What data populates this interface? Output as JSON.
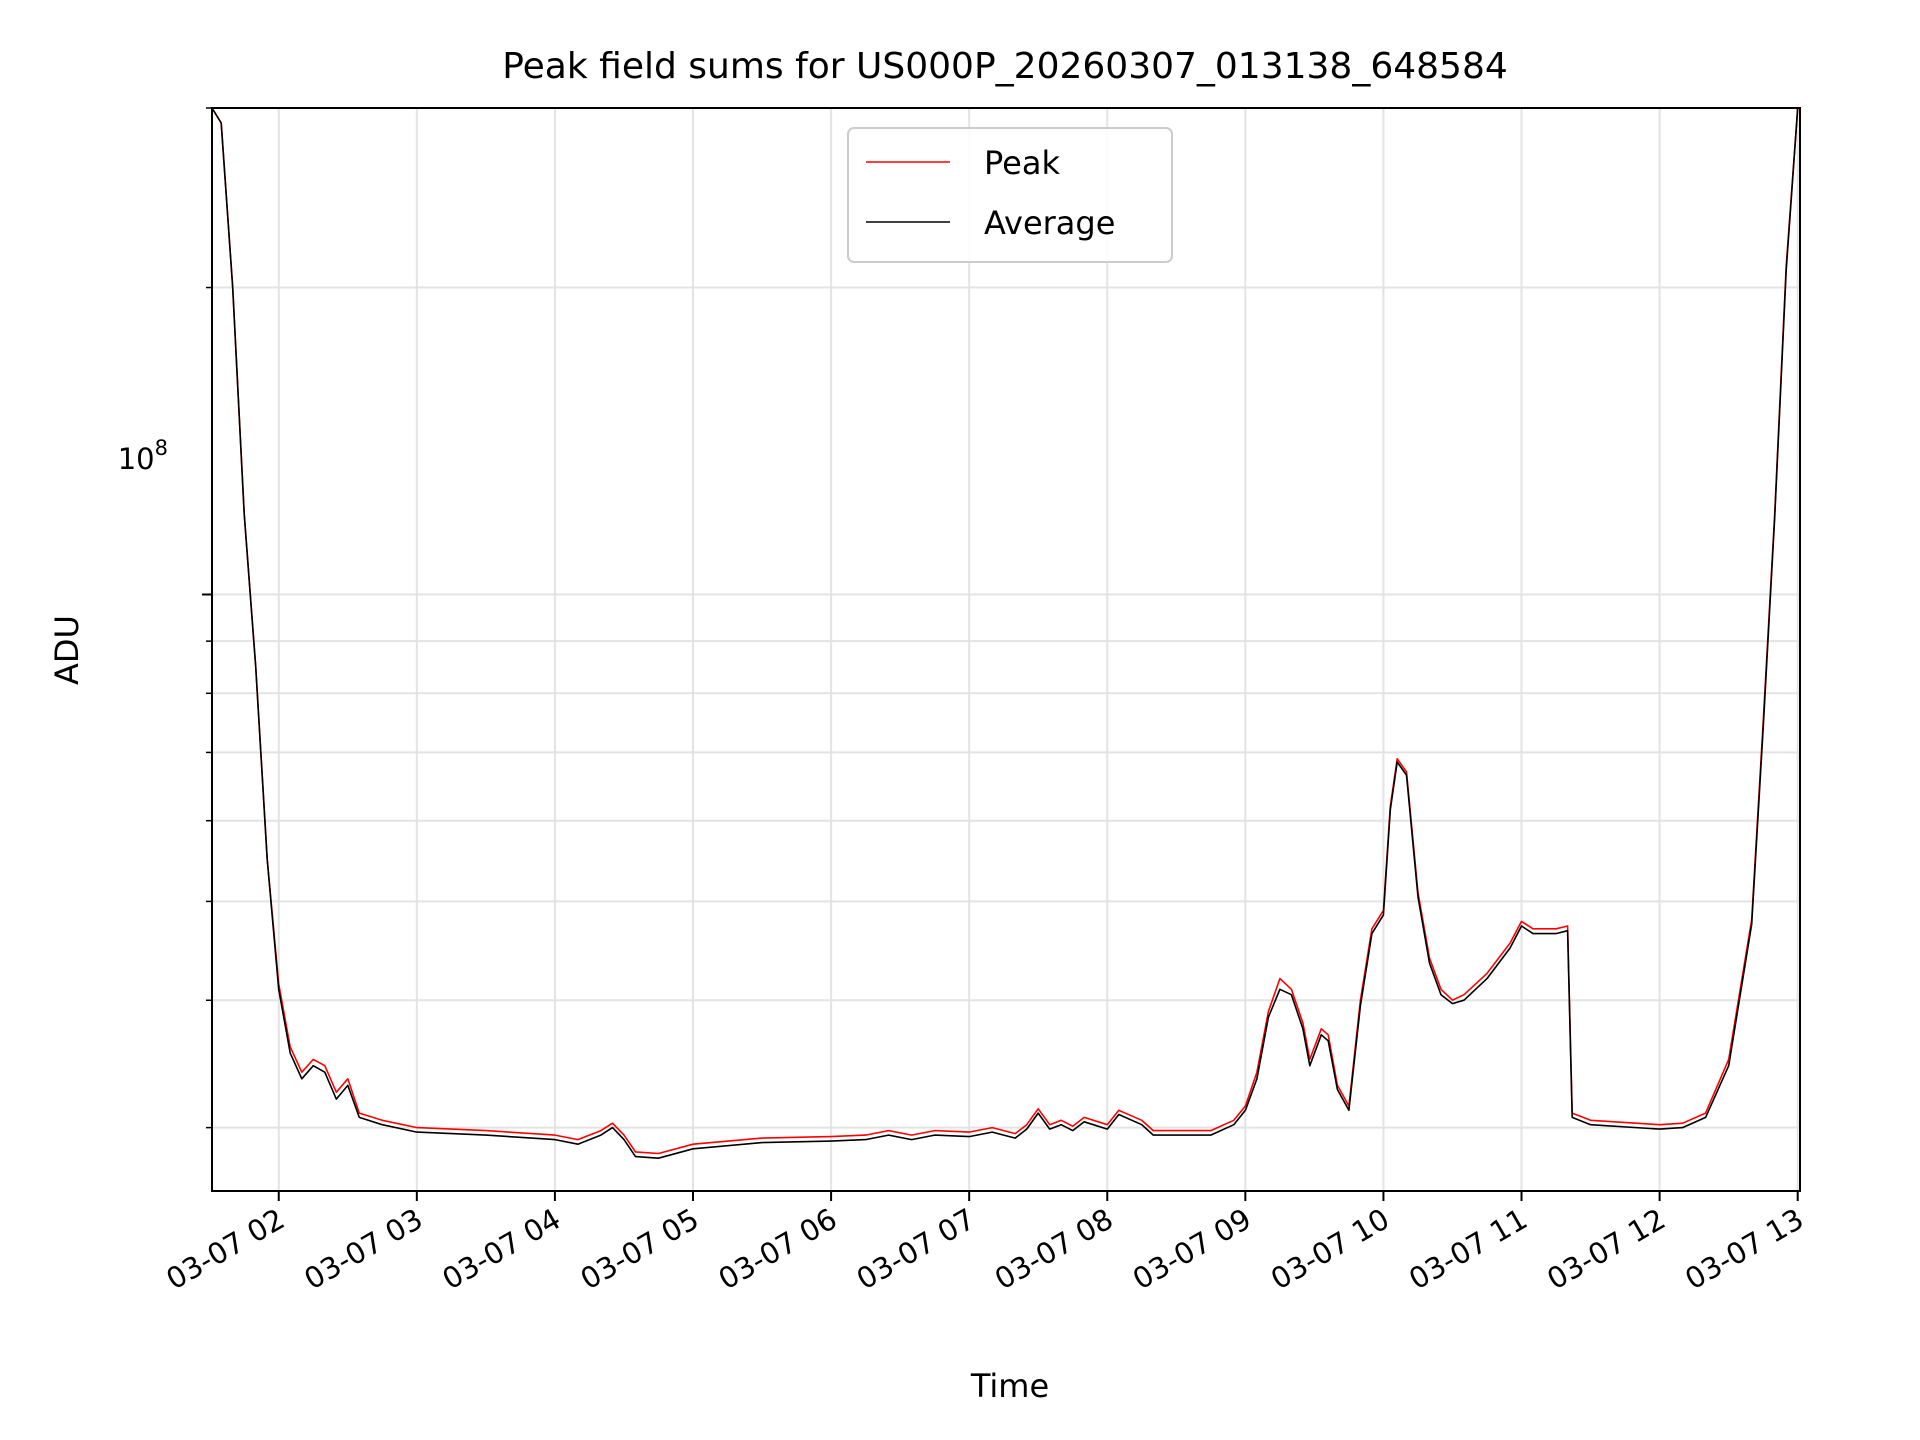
{
  "chart_data": {
    "type": "line",
    "title": "Peak field sums for US000P_20260307_013138_648584",
    "xlabel": "Time",
    "ylabel": "ADU",
    "y_scale": "log",
    "y_tick_label_base": "10",
    "y_tick_label_exp": "8",
    "y_tick_value": 100000000,
    "ylim": [
      26000000,
      300000000
    ],
    "xlim": [
      "2026-03-07 01:31",
      "2026-03-07 13:01"
    ],
    "x_ticks": [
      "03-07 02",
      "03-07 03",
      "03-07 04",
      "03-07 05",
      "03-07 06",
      "03-07 07",
      "03-07 08",
      "03-07 09",
      "03-07 10",
      "03-07 11",
      "03-07 12",
      "03-07 13"
    ],
    "x_tick_times": [
      "2026-03-07 02:00",
      "2026-03-07 03:00",
      "2026-03-07 04:00",
      "2026-03-07 05:00",
      "2026-03-07 06:00",
      "2026-03-07 07:00",
      "2026-03-07 08:00",
      "2026-03-07 09:00",
      "2026-03-07 10:00",
      "2026-03-07 11:00",
      "2026-03-07 12:00",
      "2026-03-07 13:00"
    ],
    "grid": true,
    "legend_position": "top-center",
    "series": [
      {
        "name": "Peak",
        "color": "#ff0000",
        "points": [
          [
            "2026-03-07 01:31",
            300000000
          ],
          [
            "2026-03-07 01:35",
            290000000
          ],
          [
            "2026-03-07 01:40",
            200000000
          ],
          [
            "2026-03-07 01:45",
            120000000
          ],
          [
            "2026-03-07 01:50",
            85000000
          ],
          [
            "2026-03-07 01:55",
            55000000
          ],
          [
            "2026-03-07 02:00",
            41500000
          ],
          [
            "2026-03-07 02:05",
            36000000
          ],
          [
            "2026-03-07 02:10",
            34000000
          ],
          [
            "2026-03-07 02:15",
            35000000
          ],
          [
            "2026-03-07 02:20",
            34500000
          ],
          [
            "2026-03-07 02:25",
            32500000
          ],
          [
            "2026-03-07 02:30",
            33500000
          ],
          [
            "2026-03-07 02:35",
            31000000
          ],
          [
            "2026-03-07 02:45",
            30500000
          ],
          [
            "2026-03-07 03:00",
            30000000
          ],
          [
            "2026-03-07 03:30",
            29800000
          ],
          [
            "2026-03-07 04:00",
            29500000
          ],
          [
            "2026-03-07 04:10",
            29200000
          ],
          [
            "2026-03-07 04:20",
            29800000
          ],
          [
            "2026-03-07 04:25",
            30300000
          ],
          [
            "2026-03-07 04:30",
            29500000
          ],
          [
            "2026-03-07 04:35",
            28400000
          ],
          [
            "2026-03-07 04:45",
            28300000
          ],
          [
            "2026-03-07 05:00",
            28900000
          ],
          [
            "2026-03-07 05:30",
            29300000
          ],
          [
            "2026-03-07 06:00",
            29400000
          ],
          [
            "2026-03-07 06:15",
            29500000
          ],
          [
            "2026-03-07 06:25",
            29800000
          ],
          [
            "2026-03-07 06:35",
            29500000
          ],
          [
            "2026-03-07 06:45",
            29800000
          ],
          [
            "2026-03-07 07:00",
            29700000
          ],
          [
            "2026-03-07 07:10",
            30000000
          ],
          [
            "2026-03-07 07:20",
            29600000
          ],
          [
            "2026-03-07 07:25",
            30200000
          ],
          [
            "2026-03-07 07:30",
            31300000
          ],
          [
            "2026-03-07 07:35",
            30200000
          ],
          [
            "2026-03-07 07:40",
            30500000
          ],
          [
            "2026-03-07 07:45",
            30100000
          ],
          [
            "2026-03-07 07:50",
            30700000
          ],
          [
            "2026-03-07 08:00",
            30200000
          ],
          [
            "2026-03-07 08:05",
            31200000
          ],
          [
            "2026-03-07 08:15",
            30500000
          ],
          [
            "2026-03-07 08:20",
            29800000
          ],
          [
            "2026-03-07 08:45",
            29800000
          ],
          [
            "2026-03-07 08:55",
            30500000
          ],
          [
            "2026-03-07 09:00",
            31500000
          ],
          [
            "2026-03-07 09:05",
            34000000
          ],
          [
            "2026-03-07 09:10",
            39000000
          ],
          [
            "2026-03-07 09:15",
            42000000
          ],
          [
            "2026-03-07 09:20",
            41000000
          ],
          [
            "2026-03-07 09:25",
            38000000
          ],
          [
            "2026-03-07 09:28",
            35000000
          ],
          [
            "2026-03-07 09:33",
            37500000
          ],
          [
            "2026-03-07 09:36",
            37000000
          ],
          [
            "2026-03-07 09:40",
            33000000
          ],
          [
            "2026-03-07 09:45",
            31500000
          ],
          [
            "2026-03-07 09:50",
            40000000
          ],
          [
            "2026-03-07 09:55",
            47000000
          ],
          [
            "2026-03-07 10:00",
            49000000
          ],
          [
            "2026-03-07 10:03",
            62000000
          ],
          [
            "2026-03-07 10:06",
            69000000
          ],
          [
            "2026-03-07 10:10",
            67000000
          ],
          [
            "2026-03-07 10:15",
            51000000
          ],
          [
            "2026-03-07 10:20",
            44000000
          ],
          [
            "2026-03-07 10:25",
            41000000
          ],
          [
            "2026-03-07 10:30",
            40000000
          ],
          [
            "2026-03-07 10:35",
            40500000
          ],
          [
            "2026-03-07 10:45",
            42500000
          ],
          [
            "2026-03-07 10:55",
            45500000
          ],
          [
            "2026-03-07 11:00",
            47800000
          ],
          [
            "2026-03-07 11:05",
            47000000
          ],
          [
            "2026-03-07 11:15",
            47000000
          ],
          [
            "2026-03-07 11:20",
            47300000
          ],
          [
            "2026-03-07 11:22",
            31000000
          ],
          [
            "2026-03-07 11:30",
            30500000
          ],
          [
            "2026-03-07 12:00",
            30200000
          ],
          [
            "2026-03-07 12:10",
            30300000
          ],
          [
            "2026-03-07 12:20",
            31000000
          ],
          [
            "2026-03-07 12:30",
            35000000
          ],
          [
            "2026-03-07 12:40",
            48000000
          ],
          [
            "2026-03-07 12:45",
            75000000
          ],
          [
            "2026-03-07 12:50",
            120000000
          ],
          [
            "2026-03-07 12:55",
            210000000
          ],
          [
            "2026-03-07 13:00",
            300000000
          ]
        ]
      },
      {
        "name": "Average",
        "color": "#000000",
        "points": [
          [
            "2026-03-07 01:31",
            300000000
          ],
          [
            "2026-03-07 01:35",
            290000000
          ],
          [
            "2026-03-07 01:40",
            200000000
          ],
          [
            "2026-03-07 01:45",
            120000000
          ],
          [
            "2026-03-07 01:50",
            85000000
          ],
          [
            "2026-03-07 01:55",
            55000000
          ],
          [
            "2026-03-07 02:00",
            41000000
          ],
          [
            "2026-03-07 02:05",
            35500000
          ],
          [
            "2026-03-07 02:10",
            33500000
          ],
          [
            "2026-03-07 02:15",
            34500000
          ],
          [
            "2026-03-07 02:20",
            34000000
          ],
          [
            "2026-03-07 02:25",
            32000000
          ],
          [
            "2026-03-07 02:30",
            33000000
          ],
          [
            "2026-03-07 02:35",
            30700000
          ],
          [
            "2026-03-07 02:45",
            30200000
          ],
          [
            "2026-03-07 03:00",
            29700000
          ],
          [
            "2026-03-07 03:30",
            29500000
          ],
          [
            "2026-03-07 04:00",
            29200000
          ],
          [
            "2026-03-07 04:10",
            28900000
          ],
          [
            "2026-03-07 04:20",
            29500000
          ],
          [
            "2026-03-07 04:25",
            30000000
          ],
          [
            "2026-03-07 04:30",
            29200000
          ],
          [
            "2026-03-07 04:35",
            28100000
          ],
          [
            "2026-03-07 04:45",
            28000000
          ],
          [
            "2026-03-07 05:00",
            28600000
          ],
          [
            "2026-03-07 05:30",
            29000000
          ],
          [
            "2026-03-07 06:00",
            29100000
          ],
          [
            "2026-03-07 06:15",
            29200000
          ],
          [
            "2026-03-07 06:25",
            29500000
          ],
          [
            "2026-03-07 06:35",
            29200000
          ],
          [
            "2026-03-07 06:45",
            29500000
          ],
          [
            "2026-03-07 07:00",
            29400000
          ],
          [
            "2026-03-07 07:10",
            29700000
          ],
          [
            "2026-03-07 07:20",
            29300000
          ],
          [
            "2026-03-07 07:25",
            29900000
          ],
          [
            "2026-03-07 07:30",
            31000000
          ],
          [
            "2026-03-07 07:35",
            29900000
          ],
          [
            "2026-03-07 07:40",
            30200000
          ],
          [
            "2026-03-07 07:45",
            29800000
          ],
          [
            "2026-03-07 07:50",
            30400000
          ],
          [
            "2026-03-07 08:00",
            29900000
          ],
          [
            "2026-03-07 08:05",
            30900000
          ],
          [
            "2026-03-07 08:15",
            30200000
          ],
          [
            "2026-03-07 08:20",
            29500000
          ],
          [
            "2026-03-07 08:45",
            29500000
          ],
          [
            "2026-03-07 08:55",
            30200000
          ],
          [
            "2026-03-07 09:00",
            31200000
          ],
          [
            "2026-03-07 09:05",
            33500000
          ],
          [
            "2026-03-07 09:10",
            38500000
          ],
          [
            "2026-03-07 09:15",
            41000000
          ],
          [
            "2026-03-07 09:20",
            40500000
          ],
          [
            "2026-03-07 09:25",
            37500000
          ],
          [
            "2026-03-07 09:28",
            34500000
          ],
          [
            "2026-03-07 09:33",
            37000000
          ],
          [
            "2026-03-07 09:36",
            36500000
          ],
          [
            "2026-03-07 09:40",
            32700000
          ],
          [
            "2026-03-07 09:45",
            31200000
          ],
          [
            "2026-03-07 09:50",
            39500000
          ],
          [
            "2026-03-07 09:55",
            46500000
          ],
          [
            "2026-03-07 10:00",
            48500000
          ],
          [
            "2026-03-07 10:03",
            61500000
          ],
          [
            "2026-03-07 10:06",
            68500000
          ],
          [
            "2026-03-07 10:10",
            66500000
          ],
          [
            "2026-03-07 10:15",
            50500000
          ],
          [
            "2026-03-07 10:20",
            43500000
          ],
          [
            "2026-03-07 10:25",
            40500000
          ],
          [
            "2026-03-07 10:30",
            39700000
          ],
          [
            "2026-03-07 10:35",
            40000000
          ],
          [
            "2026-03-07 10:45",
            42000000
          ],
          [
            "2026-03-07 10:55",
            45000000
          ],
          [
            "2026-03-07 11:00",
            47300000
          ],
          [
            "2026-03-07 11:05",
            46500000
          ],
          [
            "2026-03-07 11:15",
            46500000
          ],
          [
            "2026-03-07 11:20",
            46800000
          ],
          [
            "2026-03-07 11:22",
            30700000
          ],
          [
            "2026-03-07 11:30",
            30200000
          ],
          [
            "2026-03-07 12:00",
            29900000
          ],
          [
            "2026-03-07 12:10",
            30000000
          ],
          [
            "2026-03-07 12:20",
            30700000
          ],
          [
            "2026-03-07 12:30",
            34500000
          ],
          [
            "2026-03-07 12:40",
            47500000
          ],
          [
            "2026-03-07 12:45",
            74000000
          ],
          [
            "2026-03-07 12:50",
            119000000
          ],
          [
            "2026-03-07 12:55",
            208000000
          ],
          [
            "2026-03-07 13:00",
            300000000
          ]
        ]
      }
    ]
  }
}
